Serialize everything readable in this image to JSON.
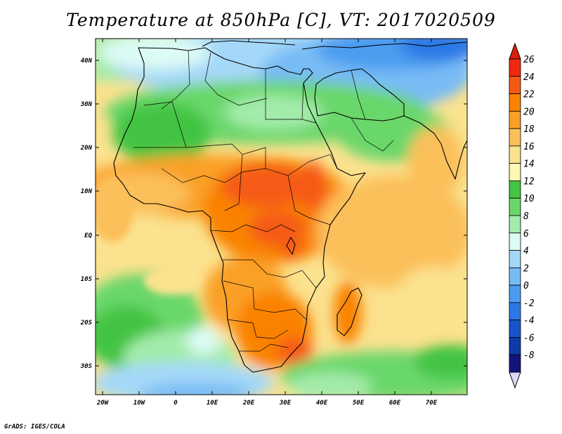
{
  "title": "Temperature at 850hPa [C], VT: 2017020509",
  "credit": "GrADS: IGES/COLA",
  "map": {
    "region": "Africa and Arabian Peninsula",
    "lon_range": [
      -23,
      80
    ],
    "lat_range": [
      -37,
      45
    ],
    "lat_labels": [
      "40N",
      "30N",
      "20N",
      "10N",
      "EQ",
      "10S",
      "20S",
      "30S"
    ],
    "lon_labels": [
      "20W",
      "10W",
      "0",
      "10E",
      "20E",
      "30E",
      "40E",
      "50E",
      "60E",
      "70E"
    ]
  },
  "colorbar": {
    "labels": [
      "26",
      "24",
      "22",
      "20",
      "18",
      "16",
      "14",
      "12",
      "10",
      "8",
      "6",
      "4",
      "2",
      "0",
      "-2",
      "-4",
      "-6",
      "-8"
    ],
    "colors": [
      "#f0280f",
      "#f55a14",
      "#fa8200",
      "#faa028",
      "#fbc05a",
      "#fbe28f",
      "#fdf7b4",
      "#43c443",
      "#6ad76a",
      "#a3ebaa",
      "#dcfbf4",
      "#a5d8f8",
      "#78bcf5",
      "#4b9cf0",
      "#2b78e6",
      "#1855cc",
      "#0e3aaa",
      "#14147a",
      "#dcd7f6"
    ],
    "top_triangle_color": "#dc1e0a",
    "bottom_triangle_color": "#dcd7f6"
  }
}
